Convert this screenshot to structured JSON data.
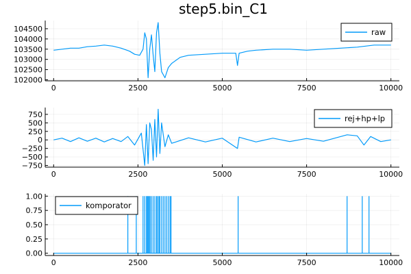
{
  "figure": {
    "title": "step5.bin_C1",
    "line_color": "#009AFA"
  },
  "chart_data": [
    {
      "type": "line",
      "title": "step5.bin_C1",
      "xlabel": "",
      "ylabel": "",
      "xlim": [
        -250,
        10250
      ],
      "ylim": [
        101950,
        104900
      ],
      "xticks": [
        0,
        2500,
        5000,
        7500,
        10000
      ],
      "xtick_labels": [
        "0",
        "2500",
        "5000",
        "7500",
        "10000"
      ],
      "yticks": [
        102000,
        102500,
        103000,
        103500,
        104000,
        104500
      ],
      "ytick_labels": [
        "102000",
        "102500",
        "103000",
        "103500",
        "104000",
        "104500"
      ],
      "grid": true,
      "legend_position": "top-right",
      "series": [
        {
          "name": "raw",
          "x": [
            0,
            250,
            500,
            750,
            1000,
            1250,
            1500,
            1750,
            2000,
            2250,
            2400,
            2550,
            2650,
            2700,
            2750,
            2800,
            2850,
            2900,
            2950,
            3000,
            3050,
            3100,
            3150,
            3200,
            3300,
            3400,
            3500,
            3750,
            4000,
            4500,
            5000,
            5400,
            5450,
            5500,
            5750,
            6000,
            6500,
            7000,
            7500,
            8000,
            8500,
            9000,
            9500,
            10000
          ],
          "y": [
            103450,
            103500,
            103550,
            103550,
            103620,
            103650,
            103700,
            103650,
            103550,
            103400,
            103250,
            103200,
            103500,
            104300,
            104000,
            102100,
            103500,
            104200,
            103200,
            102400,
            104300,
            104800,
            103300,
            102400,
            102100,
            102600,
            102800,
            103100,
            103200,
            103250,
            103300,
            103300,
            102700,
            103300,
            103400,
            103450,
            103500,
            103500,
            103450,
            103500,
            103550,
            103600,
            103700,
            103700
          ]
        }
      ]
    },
    {
      "type": "line",
      "xlabel": "",
      "ylabel": "",
      "xlim": [
        -250,
        10250
      ],
      "ylim": [
        -800,
        950
      ],
      "xticks": [
        0,
        2500,
        5000,
        7500,
        10000
      ],
      "xtick_labels": [
        "0",
        "2500",
        "5000",
        "7500",
        "10000"
      ],
      "yticks": [
        -750,
        -500,
        -250,
        0,
        250,
        500,
        750
      ],
      "ytick_labels": [
        "−750",
        "−500",
        "−250",
        "0",
        "250",
        "500",
        "750"
      ],
      "grid": true,
      "legend_position": "top-right",
      "series": [
        {
          "name": "rej+hp+lp",
          "x": [
            0,
            250,
            500,
            750,
            1000,
            1250,
            1500,
            1750,
            2000,
            2200,
            2400,
            2600,
            2700,
            2750,
            2800,
            2850,
            2900,
            2950,
            3000,
            3050,
            3100,
            3150,
            3200,
            3300,
            3400,
            3500,
            4000,
            4500,
            5000,
            5450,
            5500,
            6000,
            6500,
            7000,
            7500,
            8000,
            8700,
            9000,
            9200,
            9400,
            9700,
            10000
          ],
          "y": [
            0,
            50,
            -50,
            60,
            -40,
            50,
            -60,
            40,
            -50,
            100,
            -150,
            200,
            -750,
            450,
            -700,
            500,
            300,
            -600,
            600,
            -500,
            900,
            -400,
            500,
            -200,
            150,
            -100,
            60,
            -60,
            50,
            -250,
            80,
            -60,
            50,
            -50,
            40,
            -40,
            150,
            120,
            -150,
            100,
            -50,
            0
          ]
        }
      ]
    },
    {
      "type": "line",
      "xlabel": "",
      "ylabel": "",
      "xlim": [
        -250,
        10250
      ],
      "ylim": [
        -0.04,
        1.04
      ],
      "xticks": [
        0,
        2500,
        5000,
        7500,
        10000
      ],
      "xtick_labels": [
        "0",
        "2500",
        "5000",
        "7500",
        "10000"
      ],
      "yticks": [
        0.0,
        0.25,
        0.5,
        0.75,
        1.0
      ],
      "ytick_labels": [
        "0.00",
        "0.25",
        "0.50",
        "0.75",
        "1.00"
      ],
      "grid": true,
      "legend_position": "top-left",
      "series": [
        {
          "name": "komporator",
          "spikes_x": [
            2200,
            2450,
            2650,
            2700,
            2750,
            2780,
            2800,
            2830,
            2860,
            2900,
            2950,
            3000,
            3050,
            3080,
            3120,
            3150,
            3200,
            3250,
            3300,
            3350,
            3400,
            3450,
            3480,
            5470,
            8700,
            9150,
            9350
          ],
          "baseline": 0,
          "spike_value": 1
        }
      ]
    }
  ]
}
